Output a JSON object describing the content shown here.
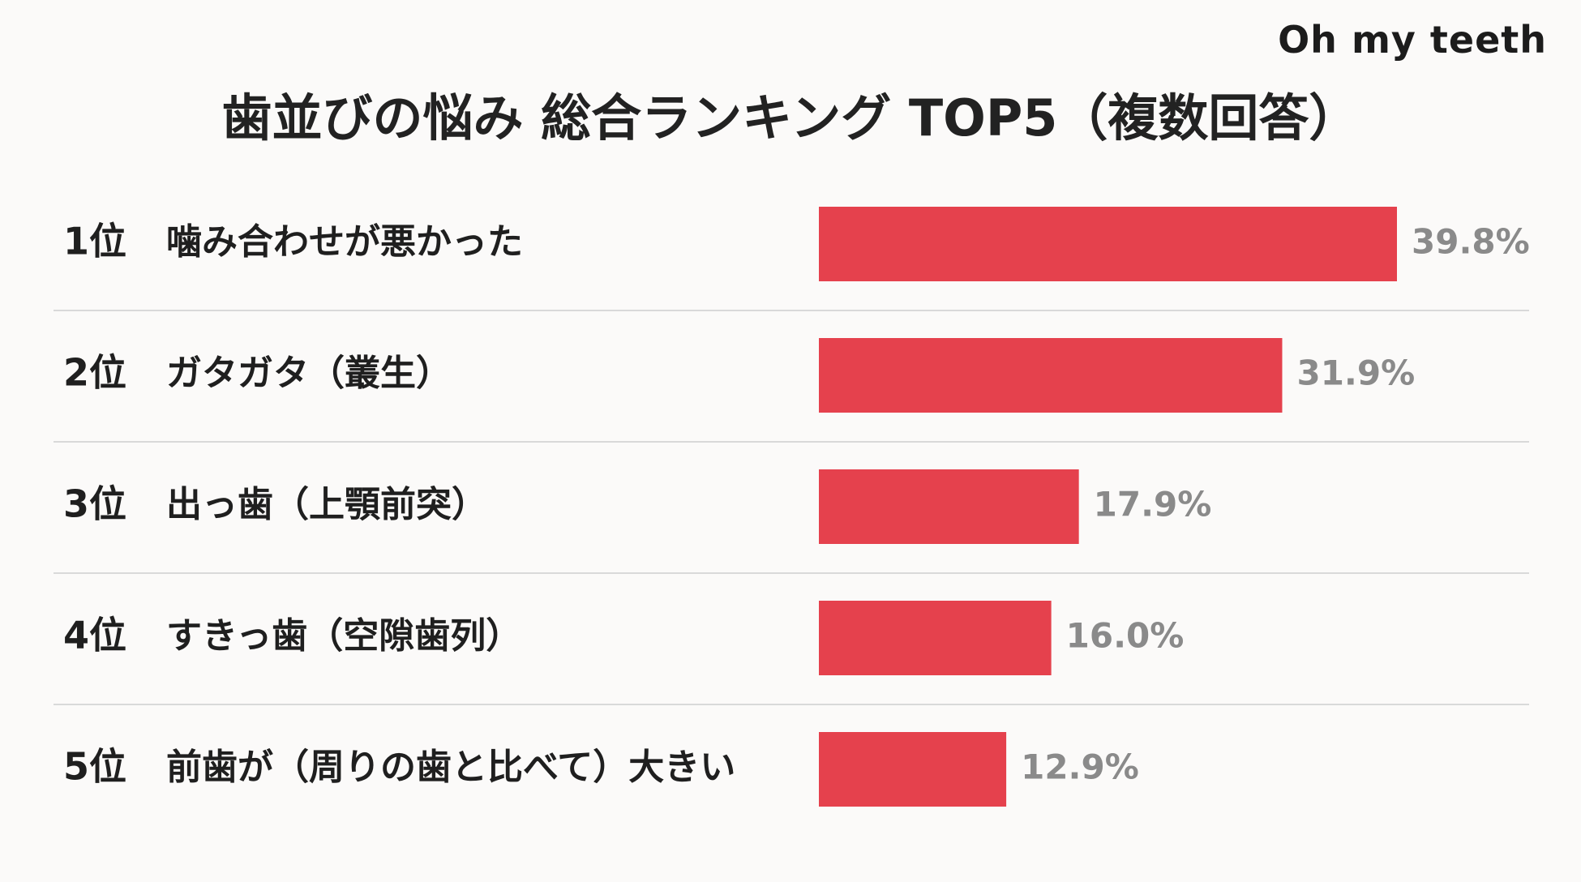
{
  "brand": "Oh my teeth",
  "colors": {
    "background": "#fbfaf9",
    "bar": "#e5414d",
    "divider": "#d9d9d9",
    "value_text": "#8a8a8a",
    "label_text": "#1f1f1f"
  },
  "chart_data": {
    "type": "bar",
    "orientation": "horizontal",
    "title": "歯並びの悩み 総合ランキング TOP5（複数回答）",
    "ranks": [
      "1位",
      "2位",
      "3位",
      "4位",
      "5位"
    ],
    "categories": [
      "噛み合わせが悪かった",
      "ガタガタ（叢生）",
      "出っ歯（上顎前突）",
      "すきっ歯（空隙歯列）",
      "前歯が（周りの歯と比べて）大きい"
    ],
    "values": [
      39.8,
      31.9,
      17.9,
      16.0,
      12.9
    ],
    "value_labels": [
      "39.8%",
      "31.9%",
      "17.9%",
      "16.0%",
      "12.9%"
    ],
    "unit": "%",
    "xlim": [
      0,
      39.8
    ],
    "grid": false,
    "legend": "none"
  }
}
